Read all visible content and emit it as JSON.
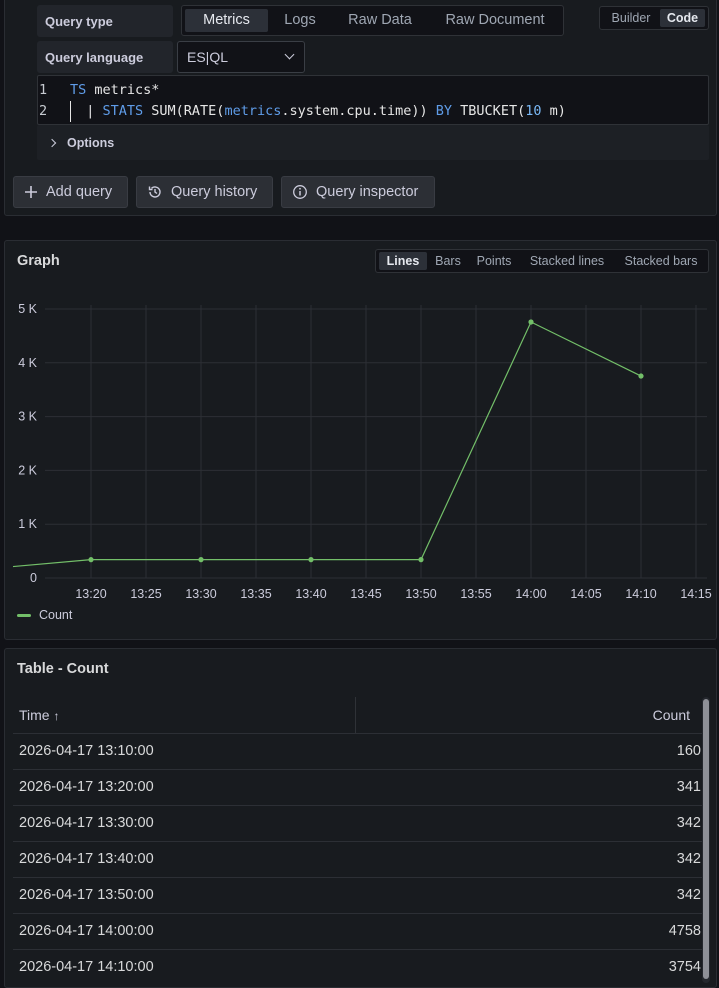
{
  "query_editor": {
    "query_type_label": "Query type",
    "query_type_options": [
      "Metrics",
      "Logs",
      "Raw Data",
      "Raw Document"
    ],
    "query_type_selected": "Metrics",
    "mode_options": [
      "Builder",
      "Code"
    ],
    "mode_selected": "Code",
    "query_language_label": "Query language",
    "query_language_value": "ES|QL",
    "code_lines": [
      {
        "num": "1",
        "text": "TS metrics*"
      },
      {
        "num": "2",
        "text": "  | STATS SUM(RATE(metrics.system.cpu.time)) BY TBUCKET(10 m)"
      }
    ],
    "options_label": "Options",
    "buttons": {
      "add_query": "Add query",
      "query_history": "Query history",
      "query_inspector": "Query inspector"
    }
  },
  "graph": {
    "title": "Graph",
    "viz_options": [
      "Lines",
      "Bars",
      "Points",
      "Stacked lines",
      "Stacked bars"
    ],
    "viz_selected": "Lines",
    "legend_label": "Count",
    "series_color": "#73bf69"
  },
  "chart_data": {
    "type": "line",
    "x": [
      "13:10",
      "13:20",
      "13:30",
      "13:40",
      "13:50",
      "14:00",
      "14:10"
    ],
    "x_tick_labels": [
      "13:20",
      "13:25",
      "13:30",
      "13:35",
      "13:40",
      "13:45",
      "13:50",
      "13:55",
      "14:00",
      "14:05",
      "14:10",
      "14:15"
    ],
    "y_tick_labels": [
      "0",
      "1 K",
      "2 K",
      "3 K",
      "4 K",
      "5 K"
    ],
    "series": [
      {
        "name": "Count",
        "values": [
          160,
          341,
          342,
          342,
          342,
          4758,
          3754
        ]
      }
    ],
    "ylim": [
      0,
      5000
    ],
    "grid": true,
    "legend": "bottom-left"
  },
  "table": {
    "title": "Table - Count",
    "columns": [
      "Time",
      "Count"
    ],
    "sort_indicator": "↑",
    "rows": [
      [
        "2026-04-17 13:10:00",
        "160"
      ],
      [
        "2026-04-17 13:20:00",
        "341"
      ],
      [
        "2026-04-17 13:30:00",
        "342"
      ],
      [
        "2026-04-17 13:40:00",
        "342"
      ],
      [
        "2026-04-17 13:50:00",
        "342"
      ],
      [
        "2026-04-17 14:00:00",
        "4758"
      ],
      [
        "2026-04-17 14:10:00",
        "3754"
      ]
    ]
  }
}
